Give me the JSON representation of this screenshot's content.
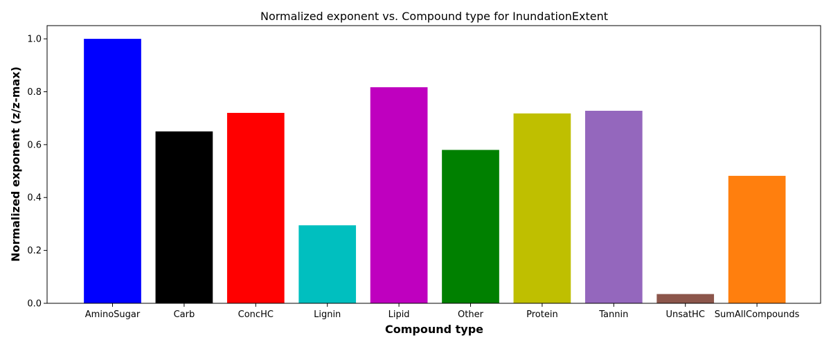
{
  "chart_data": {
    "type": "bar",
    "title": "Normalized exponent vs. Compound type for InundationExtent",
    "xlabel": "Compound type",
    "ylabel": "Normalized exponent (z/z-max)",
    "categories": [
      "AminoSugar",
      "Carb",
      "ConcHC",
      "Lignin",
      "Lipid",
      "Other",
      "Protein",
      "Tannin",
      "UnsatHC",
      "SumAllCompounds"
    ],
    "values": [
      1.0,
      0.65,
      0.72,
      0.295,
      0.817,
      0.58,
      0.718,
      0.728,
      0.035,
      0.482
    ],
    "colors": [
      "#0000ff",
      "#000000",
      "#ff0000",
      "#00bfbf",
      "#bf00bf",
      "#008000",
      "#bfbf00",
      "#9467bd",
      "#8c564b",
      "#ff7f0e"
    ],
    "ylim": [
      0,
      1.05
    ],
    "yticks": [
      "0.0",
      "0.2",
      "0.4",
      "0.6",
      "0.8",
      "1.0"
    ],
    "grid": false,
    "legend": "none"
  }
}
